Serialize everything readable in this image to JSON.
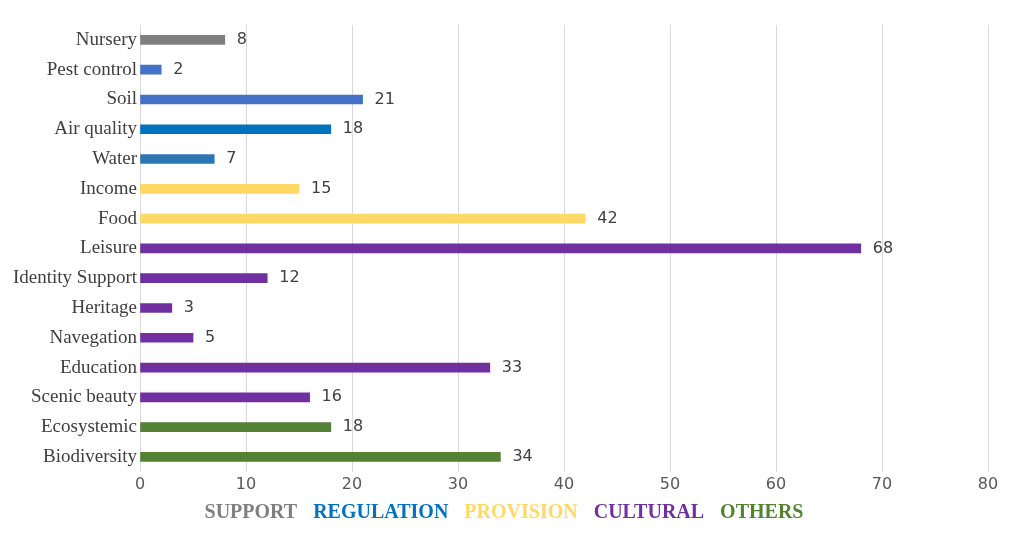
{
  "chart_data": {
    "type": "bar",
    "orientation": "horizontal",
    "categories": [
      "Nursery",
      "Pest control",
      "Soil",
      "Air quality",
      "Water",
      "Income",
      "Food",
      "Leisure",
      "Identity Support",
      "Heritage",
      "Navegation",
      "Education",
      "Scenic beauty",
      "Ecosystemic",
      "Biodiversity"
    ],
    "series": [
      {
        "name": "SUPPORT",
        "color": "#7f7f7f",
        "values": [
          8,
          null,
          null,
          null,
          null,
          null,
          null,
          null,
          null,
          null,
          null,
          null,
          null,
          null,
          null
        ]
      },
      {
        "name": "REGULATION",
        "color": "#0070c0",
        "colors": [
          null,
          "#4472c4",
          "#4472c4",
          "#0070c0",
          "#2e75b6",
          null,
          null,
          null,
          null,
          null,
          null,
          null,
          null,
          null,
          null
        ],
        "values": [
          null,
          2,
          21,
          18,
          7,
          null,
          null,
          null,
          null,
          null,
          null,
          null,
          null,
          null,
          null
        ]
      },
      {
        "name": "PROVISION",
        "color": "#ffd966",
        "values": [
          null,
          null,
          null,
          null,
          null,
          15,
          42,
          null,
          null,
          null,
          null,
          null,
          null,
          null,
          null
        ]
      },
      {
        "name": "CULTURAL",
        "color": "#7030a0",
        "values": [
          null,
          null,
          null,
          null,
          null,
          null,
          null,
          68,
          12,
          3,
          5,
          33,
          16,
          null,
          null
        ]
      },
      {
        "name": "OTHERS",
        "color": "#548235",
        "values": [
          null,
          null,
          null,
          null,
          null,
          null,
          null,
          null,
          null,
          null,
          null,
          null,
          null,
          18,
          34
        ]
      }
    ],
    "xlim": [
      0,
      80
    ],
    "xticks": [
      0,
      10,
      20,
      30,
      40,
      50,
      60,
      70,
      80
    ],
    "grid": "x",
    "legend": "bottom",
    "data_labels": true
  }
}
